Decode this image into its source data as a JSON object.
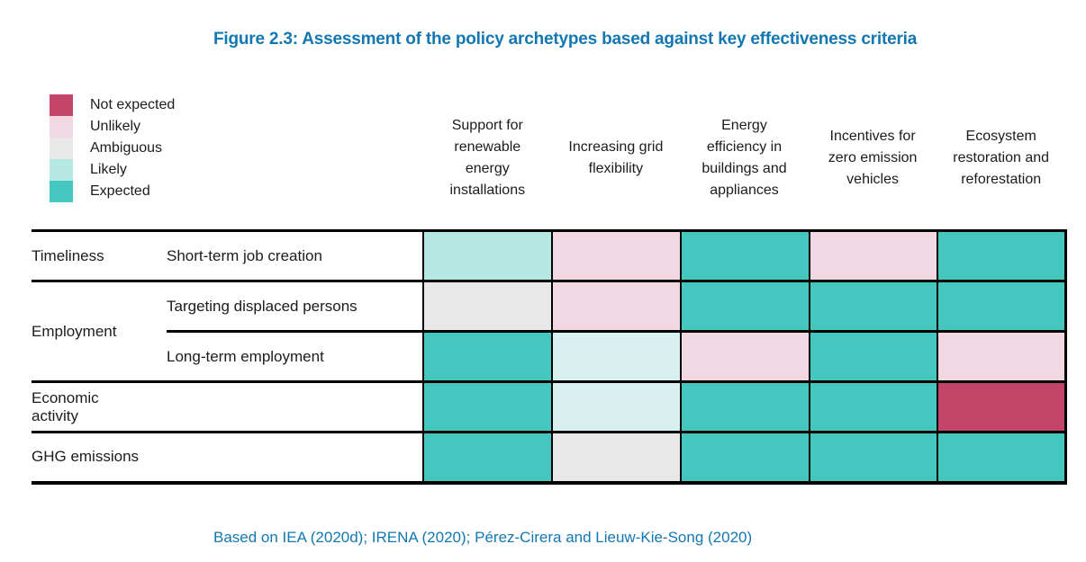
{
  "title": "Figure 2.3: Assessment of the policy archetypes based against key effectiveness criteria",
  "source_note": "Based on IEA (2020d); IRENA (2020); Pérez-Cirera and Lieuw-Kie-Song (2020)",
  "colors": {
    "heading_blue": "#1377b2",
    "border_black": "#000000",
    "not_expected": "#c34569",
    "unlikely": "#f2d8e2",
    "ambiguous": "#e7e8e7",
    "likely": "#b5e7e3",
    "likely_light": "#d9f0f1",
    "expected": "#45c7bf"
  },
  "legend": {
    "items": [
      {
        "label": "Not expected",
        "color_key": "not_expected"
      },
      {
        "label": "Unlikely",
        "color_key": "unlikely"
      },
      {
        "label": "Ambiguous",
        "color_key": "ambiguous"
      },
      {
        "label": "Likely",
        "color_key": "likely"
      },
      {
        "label": "Expected",
        "color_key": "expected"
      }
    ]
  },
  "chart_data": {
    "type": "heatmap",
    "title": "Figure 2.3: Assessment of the policy archetypes based against key effectiveness criteria",
    "legend_scale": [
      "Not expected",
      "Unlikely",
      "Ambiguous",
      "Likely",
      "Expected"
    ],
    "legend_position": "top-left",
    "columns": [
      "Support for\nrenewable\nenergy\ninstallations",
      "Increasing grid\nflexibility",
      "Energy\nefficiency in\nbuildings and\nappliances",
      "Incentives for\nzero emission\nvehicles",
      "Ecosystem\nrestoration and\nreforestation"
    ],
    "rows": [
      {
        "criterion": "Timeliness",
        "criterion_rowspan": 1,
        "criterion_colspan": 1,
        "sub_label": "Short-term job creation",
        "ratings": [
          "likely",
          "unlikely",
          "expected",
          "unlikely",
          "expected"
        ]
      },
      {
        "criterion": "Employment",
        "criterion_rowspan": 2,
        "criterion_colspan": 1,
        "sub_label": "Targeting displaced persons",
        "ratings": [
          "ambiguous",
          "unlikely",
          "expected",
          "expected",
          "expected"
        ]
      },
      {
        "criterion": null,
        "sub_label": "Long-term employment",
        "ratings": [
          "expected",
          "likely_light",
          "unlikely",
          "expected",
          "unlikely"
        ]
      },
      {
        "criterion": "Economic\nactivity",
        "criterion_rowspan": 1,
        "criterion_colspan": 2,
        "sub_label": null,
        "ratings": [
          "expected",
          "likely_light",
          "expected",
          "expected",
          "not_expected"
        ]
      },
      {
        "criterion": "GHG emissions",
        "criterion_rowspan": 1,
        "criterion_colspan": 2,
        "sub_label": null,
        "ratings": [
          "expected",
          "ambiguous",
          "expected",
          "expected",
          "expected"
        ]
      }
    ]
  }
}
